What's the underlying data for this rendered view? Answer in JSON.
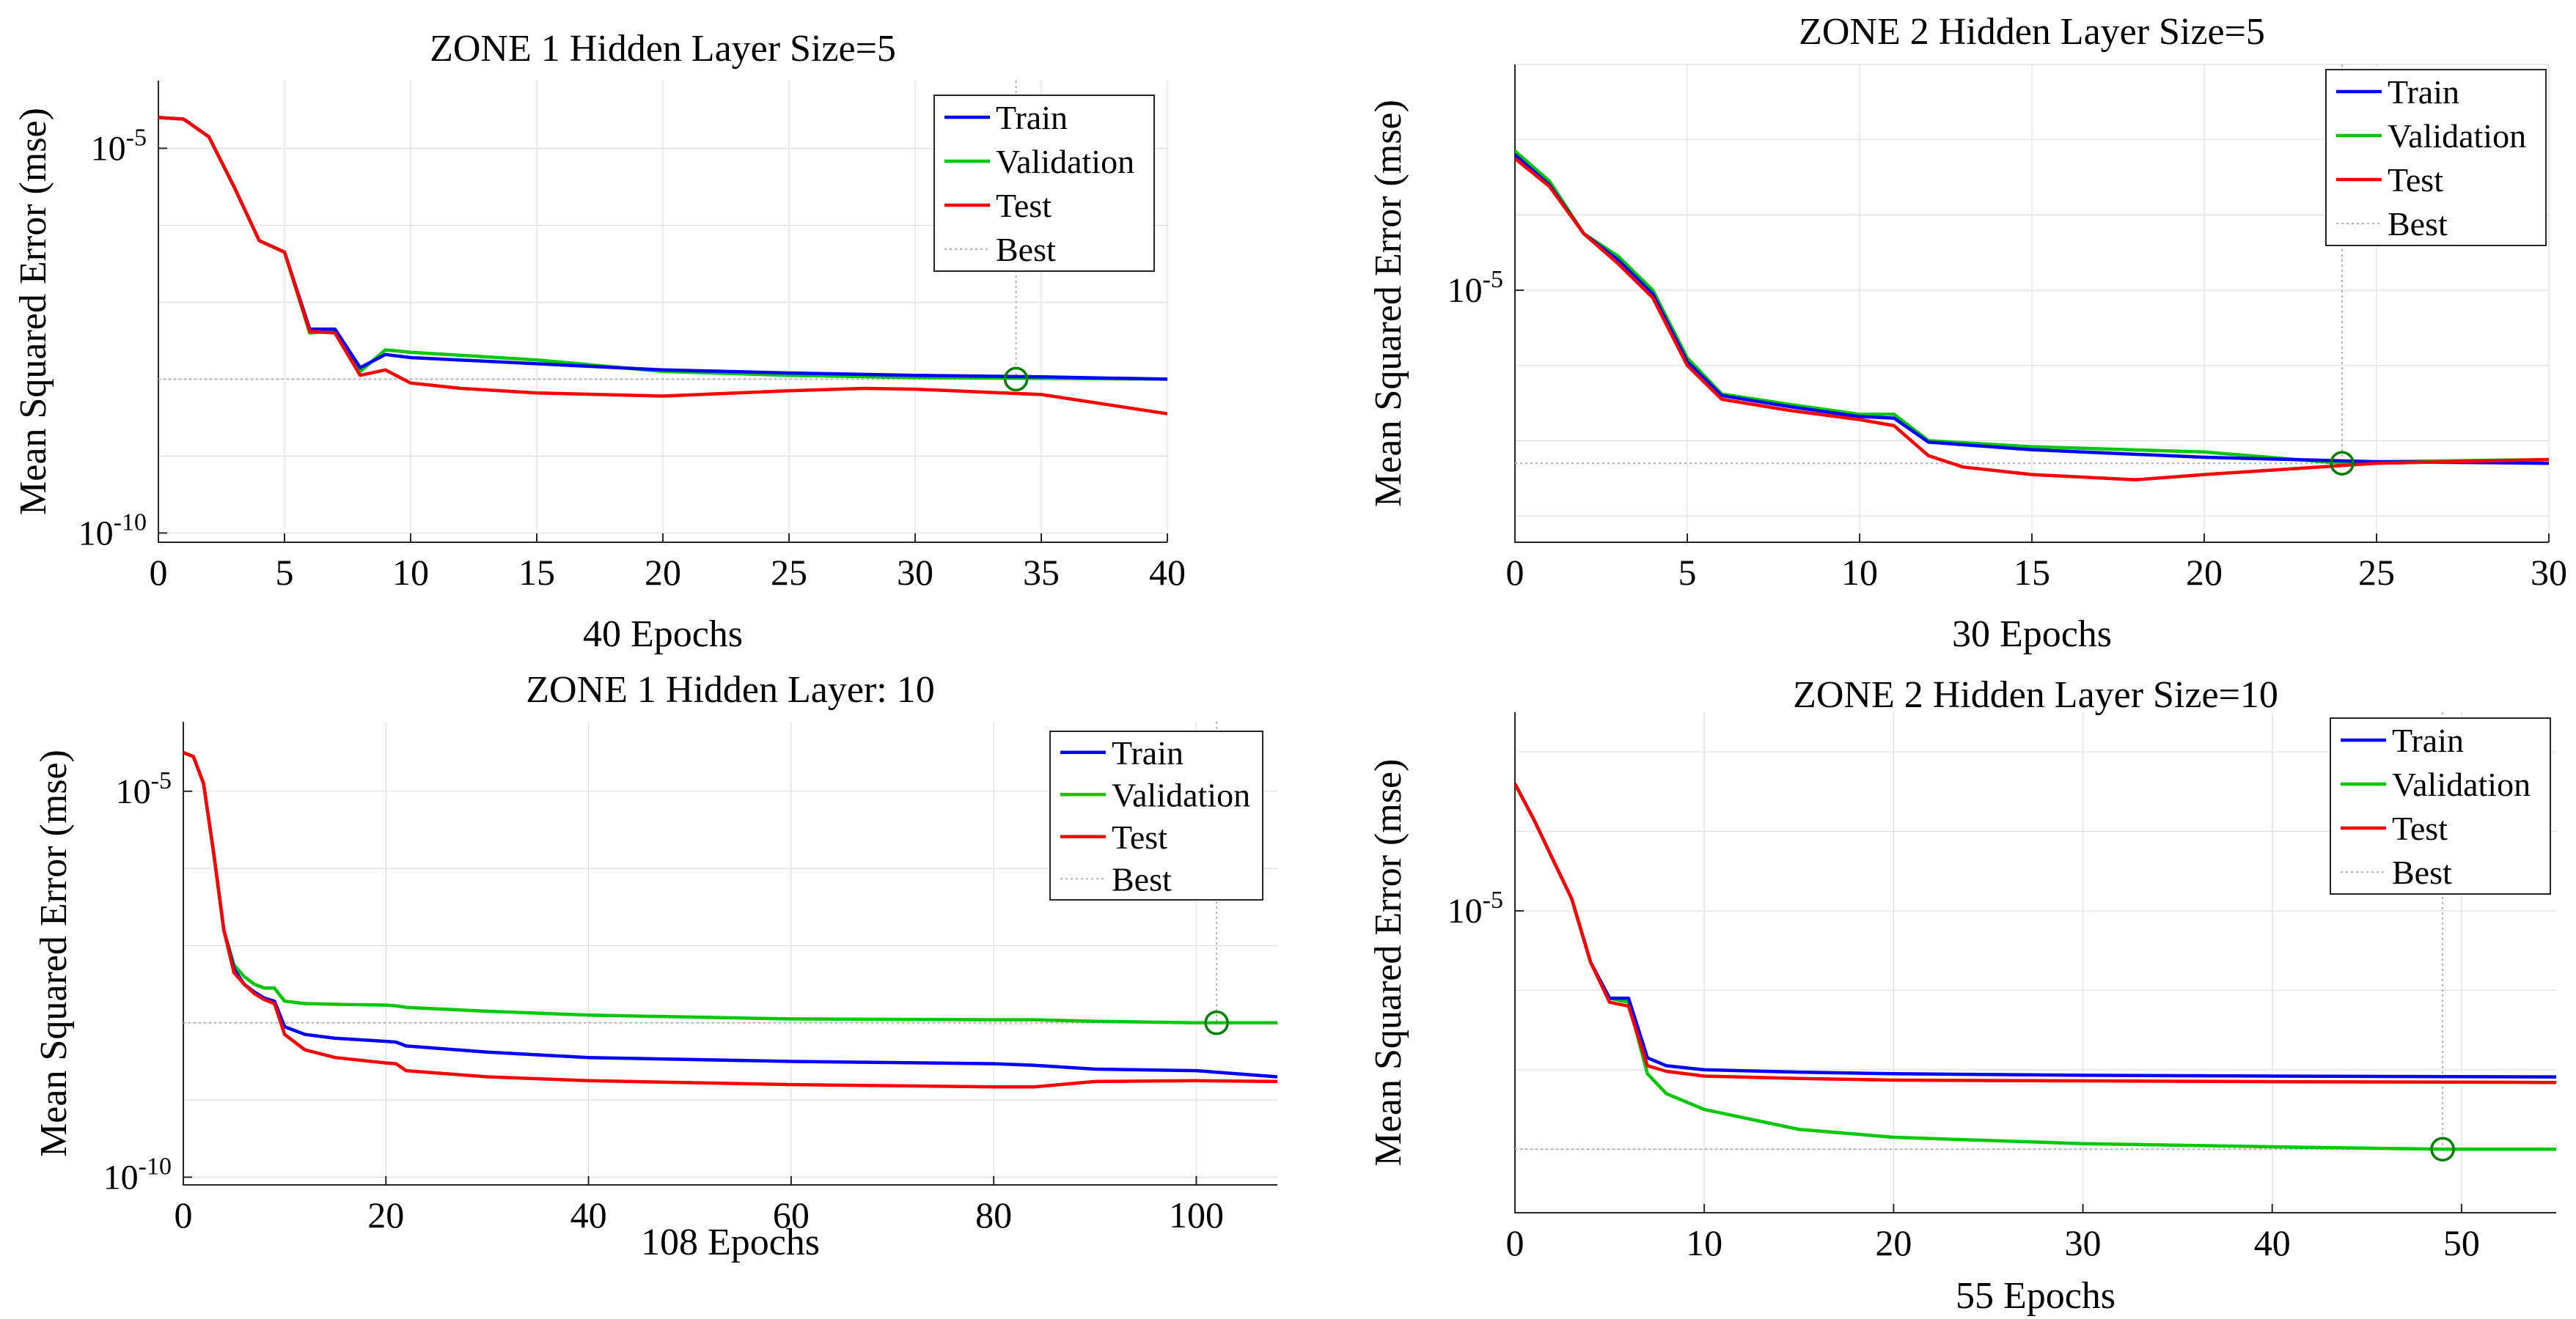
{
  "colors": {
    "train": "#0000ff",
    "validation": "#00c800",
    "test": "#ff0000",
    "best": "#b0b0b0",
    "marker": "#008000",
    "grid": "#dfdfdf",
    "axis": "#262626"
  },
  "chart_data": [
    {
      "type": "line",
      "title": "ZONE 1 Hidden Layer Size=5",
      "xlabel": "40 Epochs",
      "ylabel": "Mean Squared Error  (mse)",
      "yscale": "log",
      "xlim": [
        0,
        40
      ],
      "ylim_exp": [
        -10.12,
        -4.12
      ],
      "xticks": [
        0,
        5,
        10,
        15,
        20,
        25,
        30,
        35,
        40
      ],
      "yticks": [
        {
          "exp": -5,
          "label": "10-5"
        },
        {
          "exp": -10,
          "label": "10-10"
        }
      ],
      "legend": [
        "Train",
        "Validation",
        "Test",
        "Best"
      ],
      "legend_position": "top-right",
      "best": {
        "epoch": 34,
        "exp": -8.0
      },
      "series": [
        {
          "name": "Train",
          "points": [
            [
              0,
              -4.6
            ],
            [
              1,
              -4.62
            ],
            [
              2,
              -4.85
            ],
            [
              3,
              -5.5
            ],
            [
              4,
              -6.2
            ],
            [
              5,
              -6.35
            ],
            [
              6,
              -7.35
            ],
            [
              7,
              -7.35
            ],
            [
              8,
              -7.85
            ],
            [
              9,
              -7.68
            ],
            [
              10,
              -7.72
            ],
            [
              15,
              -7.8
            ],
            [
              20,
              -7.88
            ],
            [
              25,
              -7.92
            ],
            [
              30,
              -7.95
            ],
            [
              35,
              -7.97
            ],
            [
              40,
              -8.0
            ]
          ]
        },
        {
          "name": "Validation",
          "points": [
            [
              0,
              -4.6
            ],
            [
              1,
              -4.62
            ],
            [
              2,
              -4.85
            ],
            [
              3,
              -5.5
            ],
            [
              4,
              -6.2
            ],
            [
              5,
              -6.35
            ],
            [
              6,
              -7.4
            ],
            [
              7,
              -7.38
            ],
            [
              8,
              -7.9
            ],
            [
              9,
              -7.62
            ],
            [
              10,
              -7.65
            ],
            [
              15,
              -7.75
            ],
            [
              20,
              -7.9
            ],
            [
              25,
              -7.95
            ],
            [
              30,
              -7.98
            ],
            [
              35,
              -7.99
            ],
            [
              40,
              -8.0
            ]
          ]
        },
        {
          "name": "Test",
          "points": [
            [
              0,
              -4.6
            ],
            [
              1,
              -4.62
            ],
            [
              2,
              -4.85
            ],
            [
              3,
              -5.5
            ],
            [
              4,
              -6.2
            ],
            [
              5,
              -6.35
            ],
            [
              6,
              -7.38
            ],
            [
              7,
              -7.4
            ],
            [
              8,
              -7.95
            ],
            [
              9,
              -7.88
            ],
            [
              10,
              -8.05
            ],
            [
              12,
              -8.12
            ],
            [
              15,
              -8.18
            ],
            [
              20,
              -8.22
            ],
            [
              25,
              -8.15
            ],
            [
              28,
              -8.12
            ],
            [
              30,
              -8.13
            ],
            [
              35,
              -8.2
            ],
            [
              40,
              -8.45
            ]
          ]
        }
      ]
    },
    {
      "type": "line",
      "title": "ZONE 2 Hidden Layer Size=5",
      "xlabel": "30 Epochs",
      "ylabel": "Mean Squared Error  (mse)",
      "yscale": "log",
      "xlim": [
        0,
        30
      ],
      "ylim_exp": [
        -8.35,
        -2.0
      ],
      "xticks": [
        0,
        5,
        10,
        15,
        20,
        25,
        30
      ],
      "yticks": [
        {
          "exp": -5,
          "label": "10-5"
        }
      ],
      "legend": [
        "Train",
        "Validation",
        "Test",
        "Best"
      ],
      "legend_position": "top-right",
      "best": {
        "epoch": 24,
        "exp": -7.3
      },
      "series": [
        {
          "name": "Train",
          "points": [
            [
              0,
              -3.2
            ],
            [
              1,
              -3.6
            ],
            [
              2,
              -4.25
            ],
            [
              3,
              -4.6
            ],
            [
              4,
              -5.05
            ],
            [
              5,
              -5.95
            ],
            [
              6,
              -6.4
            ],
            [
              8,
              -6.55
            ],
            [
              10,
              -6.68
            ],
            [
              11,
              -6.7
            ],
            [
              12,
              -7.02
            ],
            [
              15,
              -7.12
            ],
            [
              20,
              -7.22
            ],
            [
              25,
              -7.28
            ],
            [
              30,
              -7.3
            ]
          ]
        },
        {
          "name": "Validation",
          "points": [
            [
              0,
              -3.15
            ],
            [
              1,
              -3.55
            ],
            [
              2,
              -4.25
            ],
            [
              3,
              -4.55
            ],
            [
              4,
              -5.0
            ],
            [
              5,
              -5.9
            ],
            [
              6,
              -6.38
            ],
            [
              8,
              -6.52
            ],
            [
              10,
              -6.65
            ],
            [
              11,
              -6.65
            ],
            [
              12,
              -7.0
            ],
            [
              15,
              -7.08
            ],
            [
              20,
              -7.15
            ],
            [
              24,
              -7.3
            ],
            [
              25,
              -7.28
            ],
            [
              30,
              -7.25
            ]
          ]
        },
        {
          "name": "Test",
          "points": [
            [
              0,
              -3.25
            ],
            [
              1,
              -3.62
            ],
            [
              2,
              -4.25
            ],
            [
              3,
              -4.65
            ],
            [
              4,
              -5.1
            ],
            [
              5,
              -6.0
            ],
            [
              6,
              -6.45
            ],
            [
              8,
              -6.6
            ],
            [
              10,
              -6.72
            ],
            [
              11,
              -6.8
            ],
            [
              12,
              -7.2
            ],
            [
              13,
              -7.35
            ],
            [
              15,
              -7.45
            ],
            [
              18,
              -7.52
            ],
            [
              20,
              -7.45
            ],
            [
              25,
              -7.3
            ],
            [
              30,
              -7.25
            ]
          ]
        }
      ]
    },
    {
      "type": "line",
      "title": "ZONE 1 Hidden Layer: 10",
      "xlabel": "108 Epochs",
      "ylabel": "Mean Squared Error  (mse)",
      "yscale": "log",
      "xlim": [
        0,
        108
      ],
      "ylim_exp": [
        -10.1,
        -4.1
      ],
      "xticks": [
        0,
        20,
        40,
        60,
        80,
        100
      ],
      "yticks": [
        {
          "exp": -5,
          "label": "10-5"
        },
        {
          "exp": -10,
          "label": "10-10"
        }
      ],
      "legend": [
        "Train",
        "Validation",
        "Test",
        "Best"
      ],
      "legend_position": "top-right",
      "best": {
        "epoch": 102,
        "exp": -8.0
      },
      "series": [
        {
          "name": "Train",
          "points": [
            [
              0,
              -4.5
            ],
            [
              1,
              -4.55
            ],
            [
              2,
              -4.9
            ],
            [
              3,
              -5.8
            ],
            [
              4,
              -6.8
            ],
            [
              5,
              -7.3
            ],
            [
              6,
              -7.5
            ],
            [
              7,
              -7.6
            ],
            [
              8,
              -7.68
            ],
            [
              9,
              -7.72
            ],
            [
              10,
              -8.05
            ],
            [
              12,
              -8.15
            ],
            [
              15,
              -8.2
            ],
            [
              20,
              -8.24
            ],
            [
              21,
              -8.25
            ],
            [
              22,
              -8.3
            ],
            [
              30,
              -8.38
            ],
            [
              40,
              -8.45
            ],
            [
              60,
              -8.5
            ],
            [
              80,
              -8.53
            ],
            [
              84,
              -8.55
            ],
            [
              90,
              -8.6
            ],
            [
              100,
              -8.62
            ],
            [
              108,
              -8.7
            ]
          ]
        },
        {
          "name": "Validation",
          "points": [
            [
              0,
              -4.5
            ],
            [
              1,
              -4.55
            ],
            [
              2,
              -4.9
            ],
            [
              3,
              -5.8
            ],
            [
              4,
              -6.8
            ],
            [
              5,
              -7.25
            ],
            [
              6,
              -7.4
            ],
            [
              7,
              -7.5
            ],
            [
              8,
              -7.55
            ],
            [
              9,
              -7.55
            ],
            [
              10,
              -7.72
            ],
            [
              12,
              -7.75
            ],
            [
              15,
              -7.76
            ],
            [
              20,
              -7.77
            ],
            [
              21,
              -7.78
            ],
            [
              22,
              -7.8
            ],
            [
              30,
              -7.85
            ],
            [
              40,
              -7.9
            ],
            [
              60,
              -7.95
            ],
            [
              80,
              -7.96
            ],
            [
              84,
              -7.96
            ],
            [
              90,
              -7.98
            ],
            [
              100,
              -8.0
            ],
            [
              108,
              -8.0
            ]
          ]
        },
        {
          "name": "Test",
          "points": [
            [
              0,
              -4.5
            ],
            [
              1,
              -4.55
            ],
            [
              2,
              -4.9
            ],
            [
              3,
              -5.8
            ],
            [
              4,
              -6.8
            ],
            [
              5,
              -7.35
            ],
            [
              6,
              -7.5
            ],
            [
              7,
              -7.62
            ],
            [
              8,
              -7.7
            ],
            [
              9,
              -7.75
            ],
            [
              10,
              -8.15
            ],
            [
              12,
              -8.35
            ],
            [
              15,
              -8.45
            ],
            [
              20,
              -8.52
            ],
            [
              21,
              -8.53
            ],
            [
              22,
              -8.62
            ],
            [
              30,
              -8.7
            ],
            [
              40,
              -8.75
            ],
            [
              60,
              -8.8
            ],
            [
              80,
              -8.83
            ],
            [
              84,
              -8.83
            ],
            [
              90,
              -8.76
            ],
            [
              100,
              -8.75
            ],
            [
              108,
              -8.76
            ]
          ]
        }
      ]
    },
    {
      "type": "line",
      "title": "ZONE 2 Hidden Layer Size=10",
      "xlabel": "55 Epochs",
      "ylabel": "Mean Squared Error  (mse)",
      "yscale": "log",
      "xlim": [
        0,
        55
      ],
      "ylim_exp": [
        -8.8,
        -2.5
      ],
      "xticks": [
        0,
        10,
        20,
        30,
        40,
        50
      ],
      "yticks": [
        {
          "exp": -5,
          "label": "10-5"
        }
      ],
      "legend": [
        "Train",
        "Validation",
        "Test",
        "Best"
      ],
      "legend_position": "top-right",
      "best": {
        "epoch": 49,
        "exp": -8.0
      },
      "series": [
        {
          "name": "Train",
          "points": [
            [
              0,
              -3.4
            ],
            [
              1,
              -3.85
            ],
            [
              2,
              -4.35
            ],
            [
              3,
              -4.85
            ],
            [
              4,
              -5.65
            ],
            [
              5,
              -6.1
            ],
            [
              6,
              -6.1
            ],
            [
              7,
              -6.85
            ],
            [
              8,
              -6.95
            ],
            [
              10,
              -7.0
            ],
            [
              15,
              -7.03
            ],
            [
              20,
              -7.05
            ],
            [
              30,
              -7.07
            ],
            [
              40,
              -7.08
            ],
            [
              55,
              -7.09
            ]
          ]
        },
        {
          "name": "Validation",
          "points": [
            [
              0,
              -3.4
            ],
            [
              1,
              -3.85
            ],
            [
              2,
              -4.35
            ],
            [
              3,
              -4.85
            ],
            [
              4,
              -5.65
            ],
            [
              5,
              -6.1
            ],
            [
              6,
              -6.15
            ],
            [
              7,
              -7.05
            ],
            [
              8,
              -7.3
            ],
            [
              10,
              -7.5
            ],
            [
              15,
              -7.75
            ],
            [
              20,
              -7.85
            ],
            [
              30,
              -7.93
            ],
            [
              40,
              -7.97
            ],
            [
              49,
              -8.0
            ],
            [
              55,
              -8.0
            ]
          ]
        },
        {
          "name": "Test",
          "points": [
            [
              0,
              -3.4
            ],
            [
              1,
              -3.85
            ],
            [
              2,
              -4.35
            ],
            [
              3,
              -4.85
            ],
            [
              4,
              -5.65
            ],
            [
              5,
              -6.15
            ],
            [
              6,
              -6.2
            ],
            [
              7,
              -6.95
            ],
            [
              8,
              -7.02
            ],
            [
              10,
              -7.08
            ],
            [
              15,
              -7.11
            ],
            [
              20,
              -7.13
            ],
            [
              30,
              -7.14
            ],
            [
              40,
              -7.15
            ],
            [
              55,
              -7.16
            ]
          ]
        }
      ]
    }
  ]
}
